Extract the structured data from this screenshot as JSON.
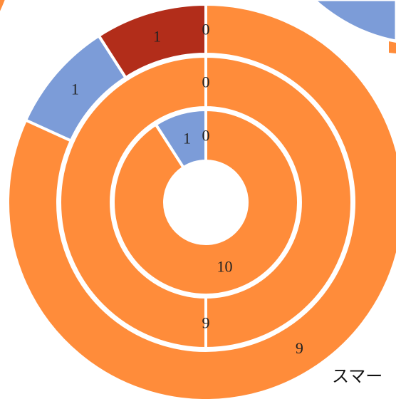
{
  "chart_data": {
    "type": "pie",
    "variant": "nested-donut",
    "rings": [
      {
        "ring": "outer",
        "slices": [
          {
            "value": 0,
            "label": "0",
            "color": "#B22D1A"
          },
          {
            "value": 9,
            "label": "9",
            "color": "#FF8C3A"
          },
          {
            "value": 1,
            "label": "1",
            "color": "#7C9CD8"
          },
          {
            "value": 1,
            "label": "1",
            "color": "#B22D1A"
          }
        ]
      },
      {
        "ring": "middle",
        "slices": [
          {
            "value": 0,
            "label": "0",
            "color": "#B22D1A"
          },
          {
            "value": 9,
            "label": "9",
            "color": "#FF8C3A"
          }
        ]
      },
      {
        "ring": "inner",
        "slices": [
          {
            "value": 0,
            "label": "0",
            "color": "#B22D1A"
          },
          {
            "value": 10,
            "label": "10",
            "color": "#FF8C3A"
          },
          {
            "value": 1,
            "label": "1",
            "color": "#7C9CD8"
          }
        ]
      }
    ],
    "start_angle": "top",
    "direction": "clockwise",
    "separator_color": "#FFFFFF"
  },
  "bottom_text": "スマー",
  "colors": {
    "orange": "#FF8C3A",
    "blue": "#7C9CD8",
    "red": "#B22D1A",
    "background": "#FFFFFF"
  }
}
